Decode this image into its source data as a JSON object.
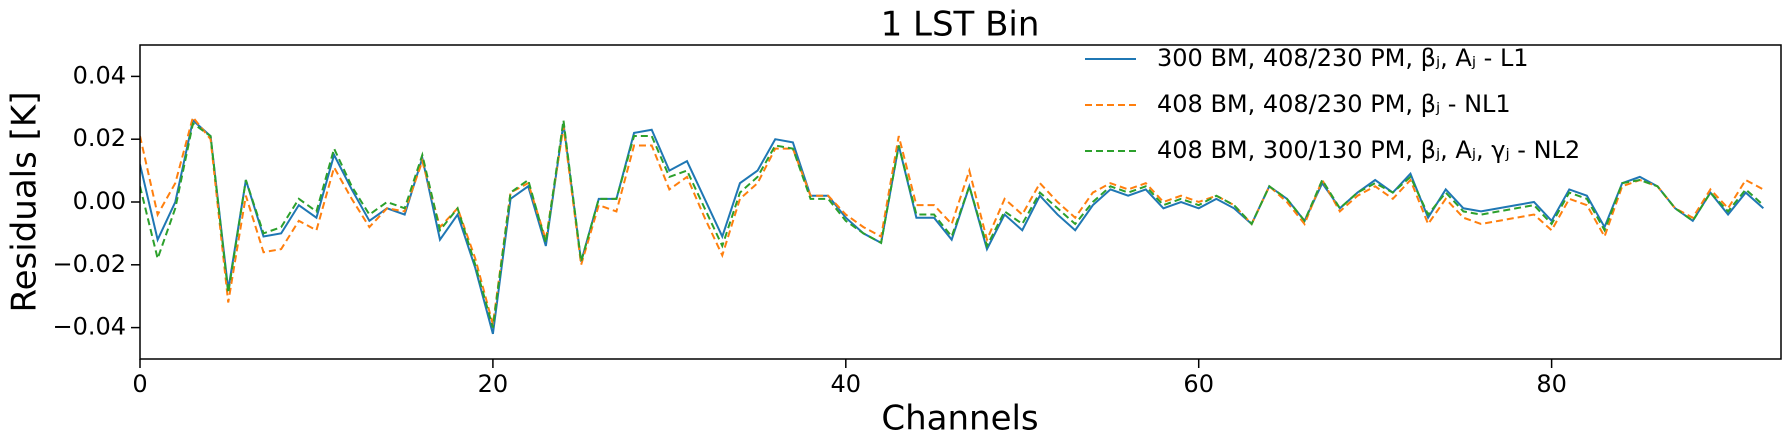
{
  "chart_data": {
    "type": "line",
    "title": "1 LST Bin",
    "x_label": "Channels",
    "y_label": "Residuals [K]",
    "x": [
      0,
      1,
      2,
      3,
      4,
      5,
      6,
      7,
      8,
      9,
      10,
      11,
      12,
      13,
      14,
      15,
      16,
      17,
      18,
      19,
      20,
      21,
      22,
      23,
      24,
      25,
      26,
      27,
      28,
      29,
      30,
      31,
      32,
      33,
      34,
      35,
      36,
      37,
      38,
      39,
      40,
      41,
      42,
      43,
      44,
      45,
      46,
      47,
      48,
      49,
      50,
      51,
      52,
      53,
      54,
      55,
      56,
      57,
      58,
      59,
      60,
      61,
      62,
      63,
      64,
      65,
      66,
      67,
      68,
      69,
      70,
      71,
      72,
      73,
      74,
      75,
      76,
      77,
      78,
      79,
      80,
      81,
      82,
      83,
      84,
      85,
      86,
      87,
      88,
      89,
      90,
      91,
      92
    ],
    "series": [
      {
        "name": "300 BM, 408/230 PM, βⱼ, Aⱼ - L1",
        "color": "#1f77b4",
        "linestyle": "solid",
        "values": [
          0.012,
          -0.012,
          0.0,
          0.026,
          0.021,
          -0.028,
          0.007,
          -0.011,
          -0.01,
          -0.001,
          -0.005,
          0.015,
          0.004,
          -0.006,
          -0.002,
          -0.004,
          0.014,
          -0.012,
          -0.004,
          -0.021,
          -0.042,
          0.001,
          0.005,
          -0.014,
          0.025,
          -0.019,
          0.001,
          0.001,
          0.022,
          0.023,
          0.01,
          0.013,
          0.001,
          -0.011,
          0.006,
          0.01,
          0.02,
          0.019,
          0.002,
          0.002,
          -0.005,
          -0.01,
          -0.013,
          0.018,
          -0.005,
          -0.005,
          -0.012,
          0.005,
          -0.015,
          -0.004,
          -0.009,
          0.002,
          -0.004,
          -0.009,
          -0.001,
          0.004,
          0.002,
          0.004,
          -0.002,
          0.0,
          -0.002,
          0.001,
          -0.002,
          -0.007,
          0.005,
          0.001,
          -0.006,
          0.006,
          -0.002,
          0.003,
          0.007,
          0.003,
          0.009,
          -0.005,
          0.004,
          -0.002,
          -0.003,
          -0.002,
          -0.001,
          0.0,
          -0.006,
          0.004,
          0.002,
          -0.008,
          0.006,
          0.008,
          0.005,
          -0.002,
          -0.006,
          0.003,
          -0.004,
          0.003,
          -0.002
        ]
      },
      {
        "name": "408 BM, 408/230 PM, βⱼ - NL1",
        "color": "#ff7f0e",
        "linestyle": "dashed",
        "values": [
          0.021,
          -0.004,
          0.006,
          0.027,
          0.02,
          -0.032,
          0.002,
          -0.016,
          -0.015,
          -0.006,
          -0.009,
          0.011,
          0.001,
          -0.008,
          -0.002,
          -0.003,
          0.013,
          -0.008,
          -0.002,
          -0.018,
          -0.039,
          0.003,
          0.006,
          -0.012,
          0.024,
          -0.02,
          -0.001,
          -0.003,
          0.018,
          0.018,
          0.004,
          0.008,
          -0.005,
          -0.017,
          0.001,
          0.006,
          0.017,
          0.017,
          0.002,
          0.002,
          -0.004,
          -0.008,
          -0.011,
          0.021,
          -0.001,
          -0.001,
          -0.007,
          0.01,
          -0.012,
          0.001,
          -0.004,
          0.006,
          0.0,
          -0.005,
          0.003,
          0.006,
          0.004,
          0.006,
          0.0,
          0.002,
          0.0,
          0.002,
          -0.001,
          -0.007,
          0.005,
          0.0,
          -0.007,
          0.007,
          -0.003,
          0.002,
          0.005,
          0.001,
          0.007,
          -0.007,
          0.001,
          -0.005,
          -0.007,
          -0.006,
          -0.005,
          -0.004,
          -0.009,
          0.001,
          -0.001,
          -0.011,
          0.005,
          0.007,
          0.005,
          -0.002,
          -0.005,
          0.004,
          -0.002,
          0.007,
          0.004
        ]
      },
      {
        "name": "408 BM, 300/130 PM, βⱼ, Aⱼ, γⱼ - NL2",
        "color": "#2ca02c",
        "linestyle": "dashed",
        "values": [
          0.005,
          -0.018,
          -0.002,
          0.025,
          0.021,
          -0.029,
          0.007,
          -0.01,
          -0.008,
          0.001,
          -0.003,
          0.017,
          0.005,
          -0.004,
          0.0,
          -0.002,
          0.015,
          -0.009,
          -0.002,
          -0.02,
          -0.04,
          0.003,
          0.007,
          -0.013,
          0.026,
          -0.019,
          0.001,
          0.001,
          0.021,
          0.021,
          0.008,
          0.01,
          -0.002,
          -0.014,
          0.003,
          0.008,
          0.018,
          0.017,
          0.001,
          0.001,
          -0.006,
          -0.01,
          -0.013,
          0.018,
          -0.004,
          -0.004,
          -0.011,
          0.005,
          -0.014,
          -0.003,
          -0.007,
          0.003,
          -0.002,
          -0.007,
          0.0,
          0.005,
          0.003,
          0.005,
          -0.001,
          0.001,
          -0.001,
          0.002,
          -0.001,
          -0.007,
          0.005,
          0.001,
          -0.006,
          0.007,
          -0.002,
          0.003,
          0.006,
          0.003,
          0.008,
          -0.004,
          0.003,
          -0.003,
          -0.004,
          -0.003,
          -0.002,
          -0.001,
          -0.007,
          0.003,
          0.001,
          -0.009,
          0.006,
          0.007,
          0.005,
          -0.002,
          -0.006,
          0.003,
          -0.003,
          0.004,
          -0.001
        ]
      }
    ],
    "xlim": [
      0,
      93
    ],
    "ylim": [
      -0.05,
      0.05
    ],
    "xticks": [
      0,
      20,
      40,
      60,
      80
    ],
    "yticks": [
      {
        "value": -0.04,
        "label": "−0.04"
      },
      {
        "value": -0.02,
        "label": "−0.02"
      },
      {
        "value": 0,
        "label": "0.00"
      },
      0.02,
      0.04
    ],
    "grid": false,
    "legend": "upper right"
  }
}
